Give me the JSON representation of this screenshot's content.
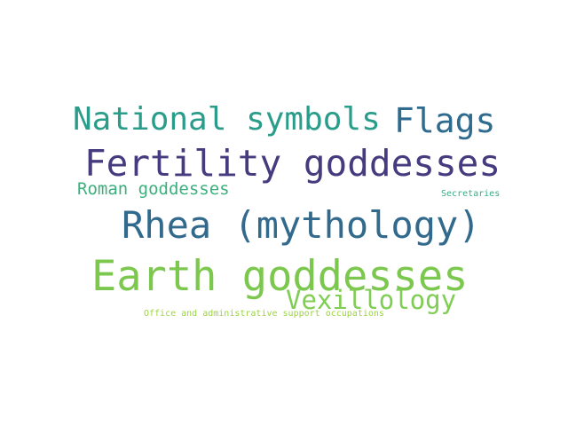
{
  "cloud": {
    "words": [
      {
        "text": "National symbols",
        "color": "#2a9d8a"
      },
      {
        "text": "Flags",
        "color": "#2f6b8e"
      },
      {
        "text": "Fertility goddesses",
        "color": "#453b7e"
      },
      {
        "text": "Roman goddesses",
        "color": "#3bb07c"
      },
      {
        "text": "Secretaries",
        "color": "#35ad86"
      },
      {
        "text": "Rhea (mythology)",
        "color": "#326a8d"
      },
      {
        "text": "Earth goddesses",
        "color": "#7cc84f"
      },
      {
        "text": "Vexillology",
        "color": "#7fcd52"
      },
      {
        "text": "Office and administrative support occupations",
        "color": "#9bd43f"
      }
    ]
  }
}
